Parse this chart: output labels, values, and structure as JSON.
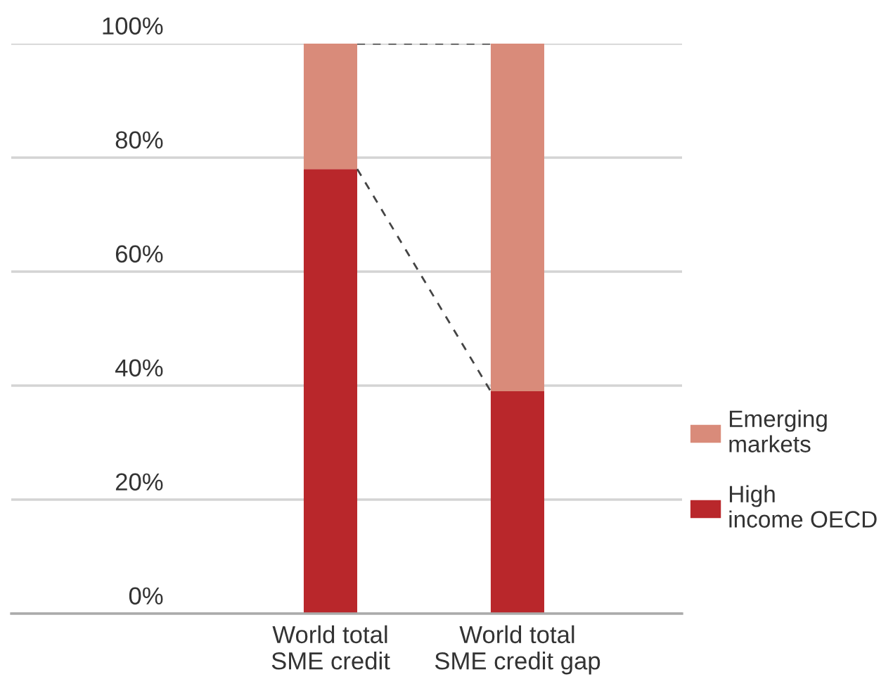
{
  "chart_data": {
    "type": "bar",
    "stacked": true,
    "categories": [
      "World total\nSME credit",
      "World total\nSME credit gap"
    ],
    "series": [
      {
        "name": "High\nincome OECD",
        "color": "#b9272b",
        "values": [
          78,
          39
        ]
      },
      {
        "name": "Emerging\nmarkets",
        "color": "#d98b7a",
        "values": [
          22,
          61
        ]
      }
    ],
    "ylim": [
      0,
      100
    ],
    "yticks": [
      {
        "value": 0,
        "label": "0%"
      },
      {
        "value": 20,
        "label": "20%"
      },
      {
        "value": 40,
        "label": "40%"
      },
      {
        "value": 60,
        "label": "60%"
      },
      {
        "value": 80,
        "label": "80%"
      },
      {
        "value": 100,
        "label": "100%"
      }
    ],
    "grid": "y",
    "legend": "right"
  }
}
